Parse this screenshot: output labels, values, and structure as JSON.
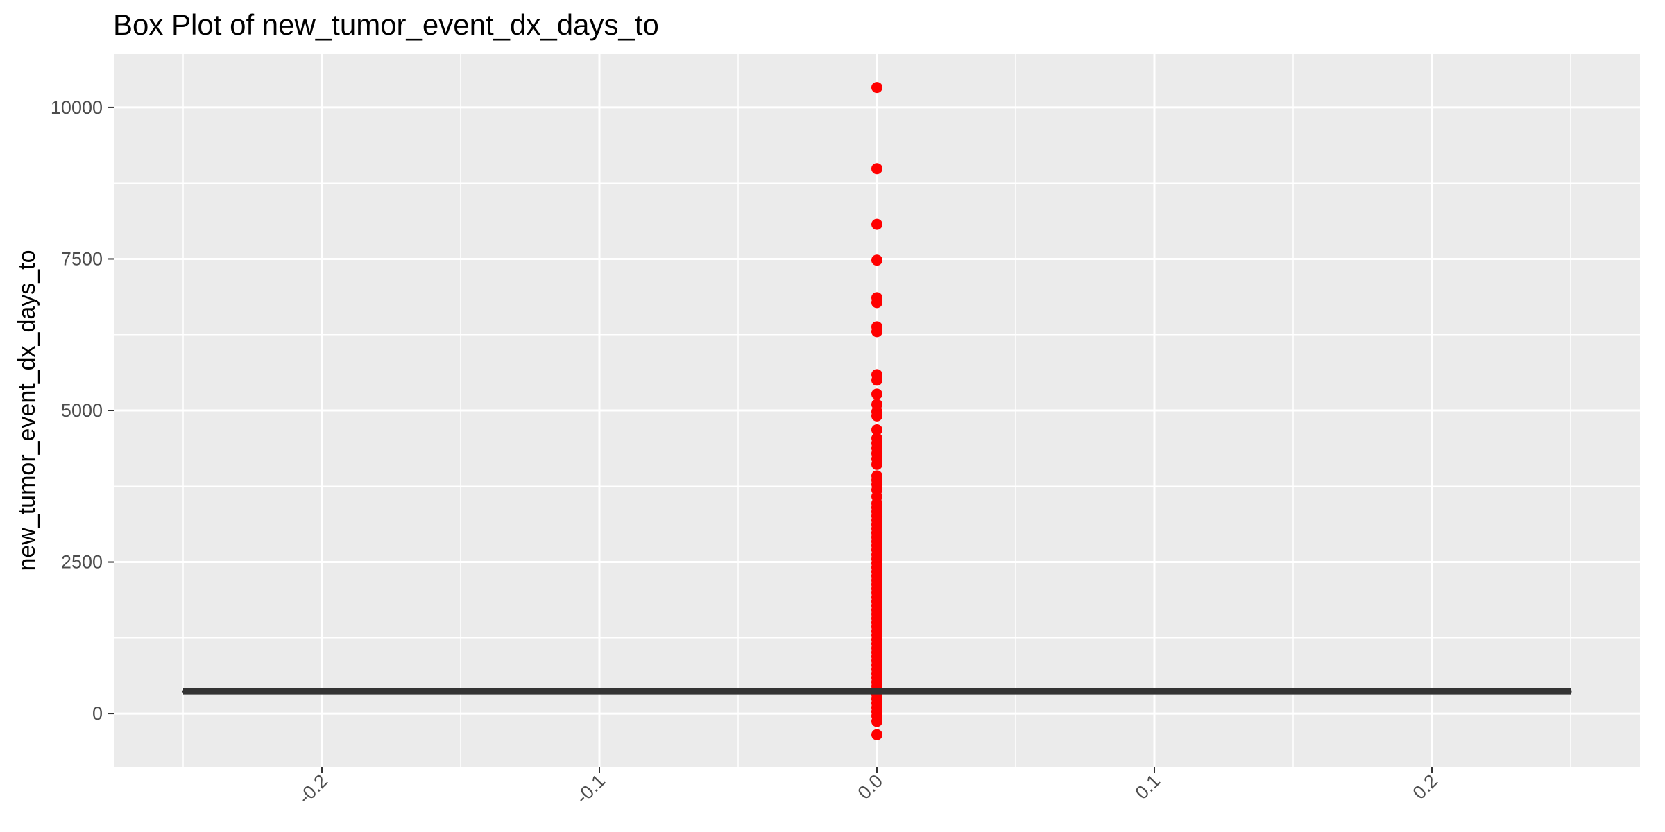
{
  "chart_data": {
    "type": "boxplot",
    "title": "Box Plot of new_tumor_event_dx_days_to",
    "xlabel": "",
    "ylabel": "new_tumor_event_dx_days_to",
    "xlim": [
      -0.275,
      0.275
    ],
    "ylim": [
      -880,
      10880
    ],
    "x_ticks": [
      -0.2,
      -0.1,
      0.0,
      0.1,
      0.2
    ],
    "x_tick_labels": [
      "-0.2",
      "-0.1",
      "0.0",
      "0.1",
      "0.2"
    ],
    "y_ticks": [
      0,
      2500,
      5000,
      7500,
      10000
    ],
    "y_tick_labels": [
      "0",
      "2500",
      "5000",
      "7500",
      "10000"
    ],
    "x_minor_ticks": [
      -0.25,
      -0.15,
      -0.05,
      0.05,
      0.15,
      0.25
    ],
    "y_minor_ticks": [
      1250,
      3750,
      6250,
      8750
    ],
    "box": {
      "x_center": 0.0,
      "x_range": [
        -0.25,
        0.25
      ],
      "lower_whisker": 365,
      "q1": 365,
      "median": 365,
      "q3": 365,
      "upper_whisker": 365,
      "color": "#333333"
    },
    "points": {
      "x": 0.0,
      "color": "#ff0000",
      "y": [
        10330,
        8990,
        8070,
        7480,
        6860,
        6780,
        6380,
        6300,
        5590,
        5500,
        5270,
        5100,
        4980,
        4910,
        4680,
        4540,
        4460,
        4380,
        4290,
        4200,
        4110,
        3920,
        3850,
        3780,
        3690,
        3580,
        3470,
        3400,
        3330,
        3260,
        3190,
        3120,
        3050,
        2980,
        2910,
        2840,
        2770,
        2700,
        2620,
        2550,
        2480,
        2410,
        2340,
        2270,
        2200,
        2130,
        2060,
        1990,
        1920,
        1850,
        1780,
        1710,
        1640,
        1570,
        1500,
        1430,
        1360,
        1290,
        1220,
        1150,
        1080,
        1010,
        940,
        870,
        800,
        730,
        660,
        590,
        520,
        450,
        380,
        310,
        240,
        170,
        100,
        30,
        -40,
        -130,
        -350
      ]
    },
    "panel_background": "#ebebeb",
    "grid": true,
    "legend": "none"
  }
}
